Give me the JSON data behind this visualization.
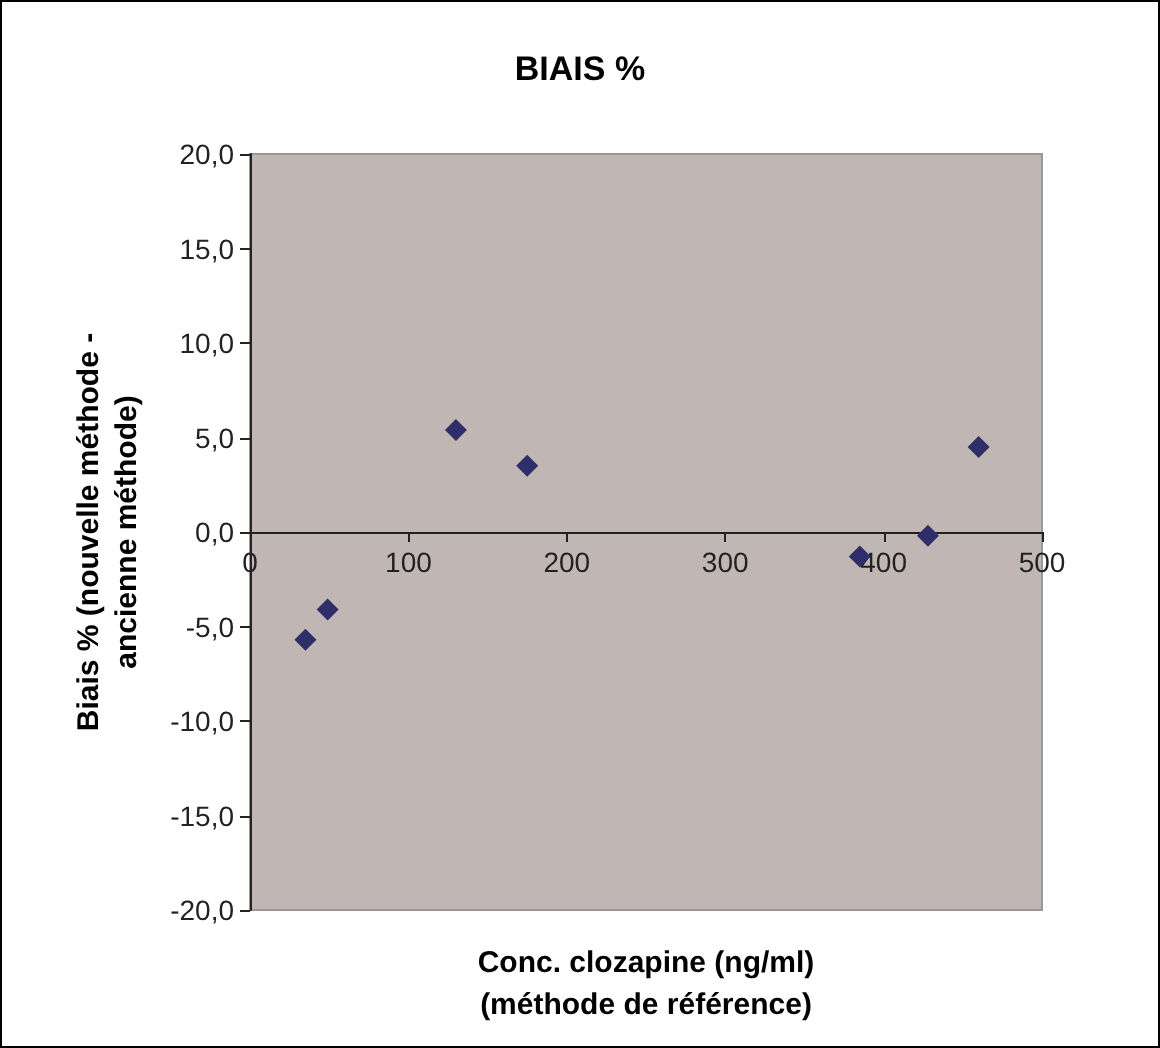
{
  "chart_data": {
    "type": "scatter",
    "title": "BIAIS %",
    "xlabel": "Conc. clozapine (ng/ml)\n(méthode de référence)",
    "ylabel": "Biais % (nouvelle méthode -\nancienne méthode)",
    "x": [
      35,
      49,
      130,
      175,
      385,
      428,
      460
    ],
    "series": [
      {
        "color": "#2e2e6b",
        "values": [
          -5.7,
          -4.1,
          5.4,
          3.5,
          -1.3,
          -0.2,
          4.5
        ]
      }
    ],
    "xlim": [
      0,
      500
    ],
    "xticks": [
      0,
      100,
      200,
      300,
      400,
      500
    ],
    "ylim": [
      -20,
      20
    ],
    "yticks": [
      {
        "value": -20,
        "label": "-20,0"
      },
      {
        "value": -15,
        "label": "-15,0"
      },
      {
        "value": -10,
        "label": "-10,0"
      },
      {
        "value": -5,
        "label": "-5,0"
      },
      {
        "value": 0,
        "label": "0,0"
      },
      {
        "value": 5,
        "label": "5,0"
      },
      {
        "value": 10,
        "label": "10,0"
      },
      {
        "value": 15,
        "label": "15,0"
      },
      {
        "value": 20,
        "label": "20,0"
      }
    ],
    "grid": false,
    "marker": "diamond"
  }
}
